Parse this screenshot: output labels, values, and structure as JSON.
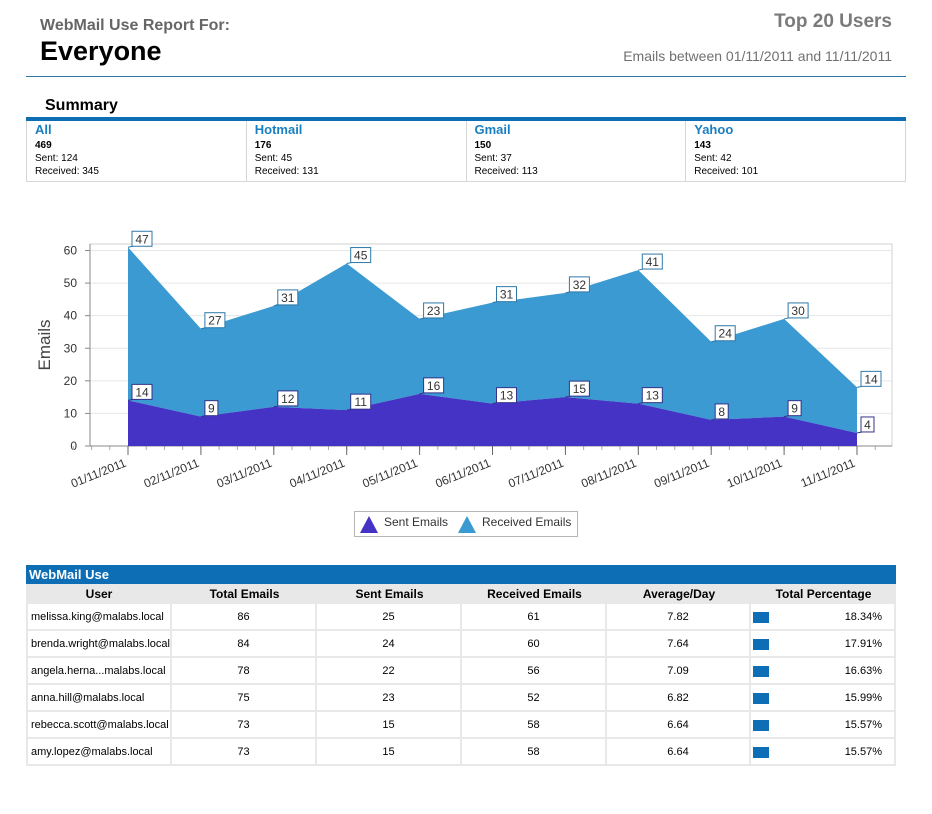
{
  "header": {
    "subtitle": "WebMail Use Report For:",
    "title": "Everyone",
    "right_title": "Top 20 Users",
    "date_range": "Emails between 01/11/2011 and 11/11/2011"
  },
  "summary": {
    "title": "Summary",
    "items": [
      {
        "name": "All",
        "total": "469",
        "sent": "Sent: 124",
        "received": "Received: 345"
      },
      {
        "name": "Hotmail",
        "total": "176",
        "sent": "Sent: 45",
        "received": "Received: 131"
      },
      {
        "name": "Gmail",
        "total": "150",
        "sent": "Sent: 37",
        "received": "Received: 113"
      },
      {
        "name": "Yahoo",
        "total": "143",
        "sent": "Sent: 42",
        "received": "Received: 101"
      }
    ]
  },
  "chart_data": {
    "type": "area",
    "stacked": true,
    "ylabel": "Emails",
    "ylim": [
      0,
      60
    ],
    "yticks": [
      0,
      10,
      20,
      30,
      40,
      50,
      60
    ],
    "grid": true,
    "legend": "bottom",
    "categories": [
      "01/11/2011",
      "02/11/2011",
      "03/11/2011",
      "04/11/2011",
      "05/11/2011",
      "06/11/2011",
      "07/11/2011",
      "08/11/2011",
      "09/11/2011",
      "10/11/2011",
      "11/11/2011"
    ],
    "series": [
      {
        "name": "Sent Emails",
        "color": "#4433c4",
        "values": [
          14,
          9,
          12,
          11,
          16,
          13,
          15,
          13,
          8,
          9,
          4
        ]
      },
      {
        "name": "Received Emails",
        "color": "#3a9ad1",
        "values": [
          47,
          27,
          31,
          45,
          23,
          31,
          32,
          41,
          24,
          30,
          14
        ]
      }
    ]
  },
  "table": {
    "title": "WebMail Use",
    "columns": [
      "User",
      "Total Emails",
      "Sent Emails",
      "Received Emails",
      "Average/Day",
      "Total Percentage"
    ],
    "bar_color": "#0e6eb5",
    "rows": [
      {
        "user": "melissa.king@malabs.local",
        "total": "86",
        "sent": "25",
        "received": "61",
        "avg": "7.82",
        "pct": "18.34%"
      },
      {
        "user": "brenda.wright@malabs.local",
        "total": "84",
        "sent": "24",
        "received": "60",
        "avg": "7.64",
        "pct": "17.91%"
      },
      {
        "user": "angela.herna...malabs.local",
        "total": "78",
        "sent": "22",
        "received": "56",
        "avg": "7.09",
        "pct": "16.63%"
      },
      {
        "user": "anna.hill@malabs.local",
        "total": "75",
        "sent": "23",
        "received": "52",
        "avg": "6.82",
        "pct": "15.99%"
      },
      {
        "user": "rebecca.scott@malabs.local",
        "total": "73",
        "sent": "15",
        "received": "58",
        "avg": "6.64",
        "pct": "15.57%"
      },
      {
        "user": "amy.lopez@malabs.local",
        "total": "73",
        "sent": "15",
        "received": "58",
        "avg": "6.64",
        "pct": "15.57%"
      }
    ]
  }
}
